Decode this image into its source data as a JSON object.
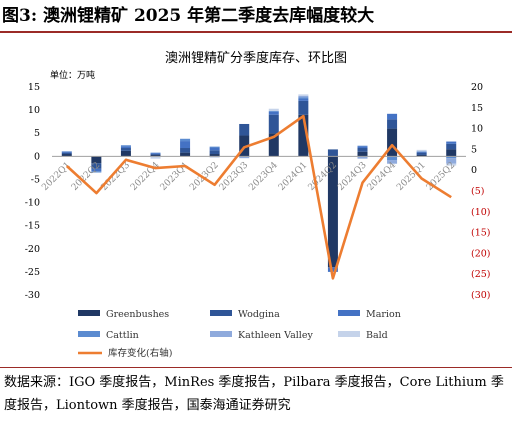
{
  "figure": {
    "title": "图3:  澳洲锂精矿 2025 年第二季度去库幅度较大",
    "source": "数据来源：IGO 季度报告，MinRes 季度报告，Pilbara 季度报告，Core Lithium 季度报告，Liontown 季度报告，国泰海通证券研究"
  },
  "chart_data": {
    "type": "bar",
    "stacked": true,
    "title": "澳洲锂精矿分季度库存、环比图",
    "unit_label": "单位：万吨",
    "categories": [
      "2022Q1",
      "2022Q2",
      "2022Q3",
      "2022Q4",
      "2023Q1",
      "2023Q2",
      "2023Q3",
      "2023Q4",
      "2024Q1",
      "2024Q2",
      "2024Q3",
      "2024Q4",
      "2025Q1",
      "2025Q2"
    ],
    "series": [
      {
        "name": "Greenbushes",
        "color": "#203864",
        "values": [
          0.5,
          -1.5,
          1.2,
          0.3,
          0.8,
          0.5,
          4.5,
          5.0,
          9.0,
          -24.0,
          1.0,
          6.0,
          0.3,
          1.5
        ]
      },
      {
        "name": "Wodgina",
        "color": "#2f5597",
        "values": [
          0.3,
          -1.2,
          0.6,
          0.2,
          1.0,
          0.8,
          2.5,
          4.0,
          3.0,
          1.5,
          0.8,
          2.0,
          0.5,
          1.2
        ]
      },
      {
        "name": "Marion",
        "color": "#4472c4",
        "values": [
          0.2,
          -0.5,
          0.4,
          0.2,
          1.5,
          0.6,
          0,
          0.6,
          0.5,
          -1.0,
          0.4,
          1.2,
          0.2,
          0.5
        ]
      },
      {
        "name": "Cattlin",
        "color": "#5b8bd0",
        "values": [
          0.1,
          -0.3,
          0.2,
          0.1,
          0.5,
          0.2,
          0,
          0.2,
          0.3,
          0,
          0.1,
          -0.8,
          0.1,
          -0.4
        ]
      },
      {
        "name": "Kathleen Valley",
        "color": "#8faadc",
        "values": [
          0,
          0,
          0,
          0,
          0,
          0,
          -0.4,
          0,
          0.3,
          0,
          -0.5,
          -0.8,
          0,
          -1.2
        ]
      },
      {
        "name": "Bald",
        "color": "#c5d3ea",
        "values": [
          0,
          0,
          0,
          -0.5,
          0,
          -0.3,
          0,
          0.5,
          0.3,
          0,
          0,
          0,
          0.3,
          -0.4
        ]
      }
    ],
    "line": {
      "name": "库存变化(右轴)",
      "color": "#ed7d31",
      "values": [
        1.0,
        -5.5,
        2.5,
        0.5,
        1.0,
        -3.5,
        5.5,
        8.0,
        13.0,
        -26.0,
        -3.0,
        6.0,
        -2.0,
        -6.5
      ]
    },
    "y_left": {
      "min": -30,
      "max": 15,
      "step": 5
    },
    "y_right": {
      "min": -30,
      "max": 20,
      "step": 5,
      "tick_labels": [
        "(30)",
        "(25)",
        "(20)",
        "(15)",
        "(10)",
        "(5)",
        "0",
        "5",
        "10",
        "15",
        "20"
      ]
    },
    "legend": {
      "position": "bottom",
      "columns": 3
    }
  }
}
